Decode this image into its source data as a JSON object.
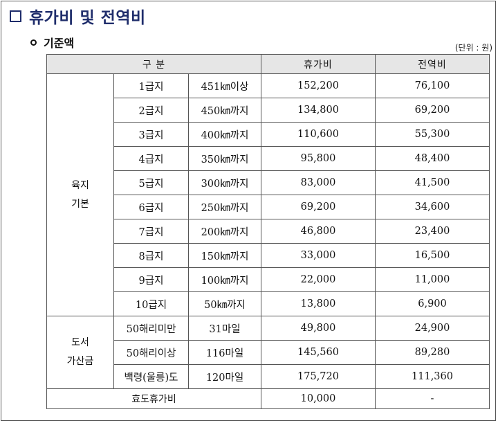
{
  "heading": {
    "title": "휴가비 및 전역비",
    "subtitle": "기준액",
    "unit": "(단위 : 원)"
  },
  "table": {
    "headers": {
      "category": "구 분",
      "vacation": "휴가비",
      "discharge": "전역비"
    },
    "mainland": {
      "label": "육지\n기본",
      "rows": [
        {
          "grade": "1급지",
          "distance": "451㎞이상",
          "vacation": "152,200",
          "discharge": "76,100"
        },
        {
          "grade": "2급지",
          "distance": "450㎞까지",
          "vacation": "134,800",
          "discharge": "69,200"
        },
        {
          "grade": "3급지",
          "distance": "400㎞까지",
          "vacation": "110,600",
          "discharge": "55,300"
        },
        {
          "grade": "4급지",
          "distance": "350㎞까지",
          "vacation": "95,800",
          "discharge": "48,400"
        },
        {
          "grade": "5급지",
          "distance": "300㎞까지",
          "vacation": "83,000",
          "discharge": "41,500"
        },
        {
          "grade": "6급지",
          "distance": "250㎞까지",
          "vacation": "69,200",
          "discharge": "34,600"
        },
        {
          "grade": "7급지",
          "distance": "200㎞까지",
          "vacation": "46,800",
          "discharge": "23,400"
        },
        {
          "grade": "8급지",
          "distance": "150㎞까지",
          "vacation": "33,000",
          "discharge": "16,500"
        },
        {
          "grade": "9급지",
          "distance": "100㎞까지",
          "vacation": "22,000",
          "discharge": "11,000"
        },
        {
          "grade": "10급지",
          "distance": "50㎞까지",
          "vacation": "13,800",
          "discharge": "6,900"
        }
      ]
    },
    "island": {
      "label": "도서\n가산금",
      "rows": [
        {
          "grade": "50해리미만",
          "distance": "31마일",
          "vacation": "49,800",
          "discharge": "24,900"
        },
        {
          "grade": "50해리이상",
          "distance": "116마일",
          "vacation": "145,560",
          "discharge": "89,280"
        },
        {
          "grade": "백령(울릉)도",
          "distance": "120마일",
          "vacation": "175,720",
          "discharge": "111,360"
        }
      ]
    },
    "filial": {
      "label": "효도휴가비",
      "vacation": "10,000",
      "discharge": "-"
    }
  },
  "colors": {
    "title": "#1f2d6b",
    "header_bg": "#e6e6e6",
    "border": "#555555"
  }
}
